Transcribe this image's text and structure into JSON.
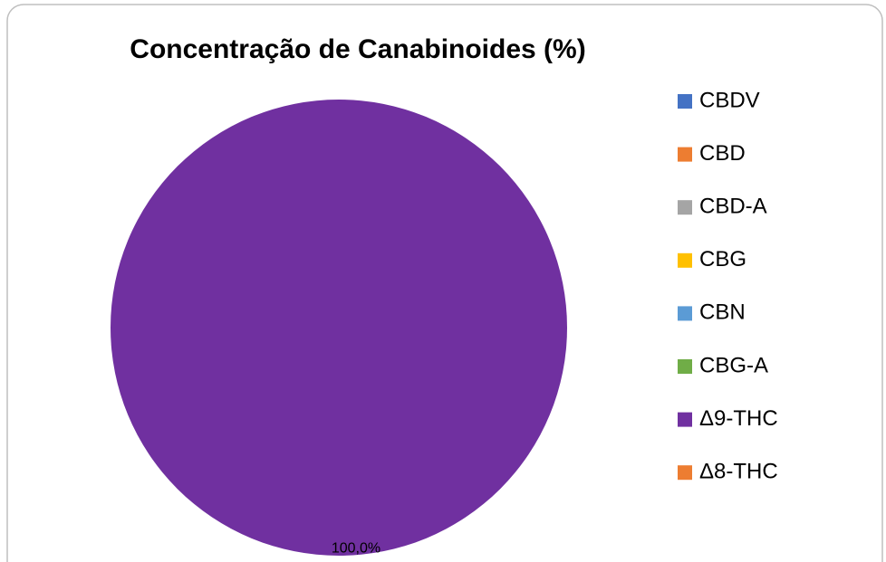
{
  "chart_data": {
    "type": "pie",
    "title": "Concentração de Canabinoides (%)",
    "categories": [
      "CBDV",
      "CBD",
      "CBD-A",
      "CBG",
      "CBN",
      "CBG-A",
      "Δ9-THC",
      "Δ8-THC"
    ],
    "values": [
      0,
      0,
      0,
      0,
      0,
      0,
      100,
      0
    ],
    "value_labels": [
      null,
      null,
      null,
      null,
      null,
      null,
      "100,0%",
      null
    ],
    "colors": [
      "#4472c4",
      "#ed7d31",
      "#a5a5a5",
      "#ffc000",
      "#5b9bd5",
      "#70ad47",
      "#7030a0",
      "#ed7d31"
    ],
    "legend": "right"
  }
}
